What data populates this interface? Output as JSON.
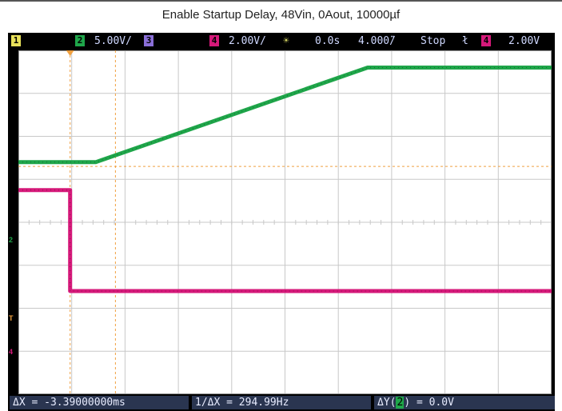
{
  "title": "Enable Startup Delay, 48Vin, 0Aout, 10000µf",
  "colors": {
    "ch2": "#1fa64a",
    "ch4": "#d6197a",
    "ch1": "#e8e05a",
    "ch3": "#8a6fd8",
    "trigger_line": "#f0a040",
    "grid": "#c8c8c8",
    "statusbar_bg": "#000000",
    "meas_bg": "#2a3550"
  },
  "statusbar": {
    "ch1_tag": "1",
    "ch2_tag": "2",
    "ch2_scale": "5.00V/",
    "ch3_tag": "3",
    "ch4_tag": "4",
    "ch4_scale": "2.00V/",
    "sun_icon": "☀",
    "delay": "0.0s",
    "timebase": "4.000̃/",
    "run_state": "Stop",
    "trig_edge_icon": "ł",
    "trig_ch_tag": "4",
    "trig_level": "2.00V"
  },
  "measurements": {
    "delta_x": "ΔX = -3.39000000ms",
    "inv_delta_x": "1/ΔX = 294.99Hz",
    "delta_y_prefix": "ΔY(",
    "delta_y_ch": "2",
    "delta_y_suffix": ") = 0.0V"
  },
  "markers": {
    "ch2_marker": "2",
    "trigger_marker": "T",
    "ch4_marker": "4"
  },
  "chart_data": {
    "type": "line",
    "title": "Enable Startup Delay, 48Vin, 0Aout, 10000µf",
    "x_unit": "div",
    "x_divisions": 10,
    "y_divisions": 8,
    "grid": true,
    "series": [
      {
        "name": "2",
        "x": [
          0.0,
          1.45,
          6.55,
          10.0
        ],
        "y": [
          5.4,
          5.4,
          7.6,
          7.6
        ]
      },
      {
        "name": "4",
        "x": [
          0.0,
          0.97,
          0.97,
          10.0
        ],
        "y": [
          4.75,
          4.75,
          2.4,
          2.4
        ]
      }
    ],
    "cursors_x": [
      0.97,
      1.82
    ],
    "trigger_level_y": 5.3
  }
}
